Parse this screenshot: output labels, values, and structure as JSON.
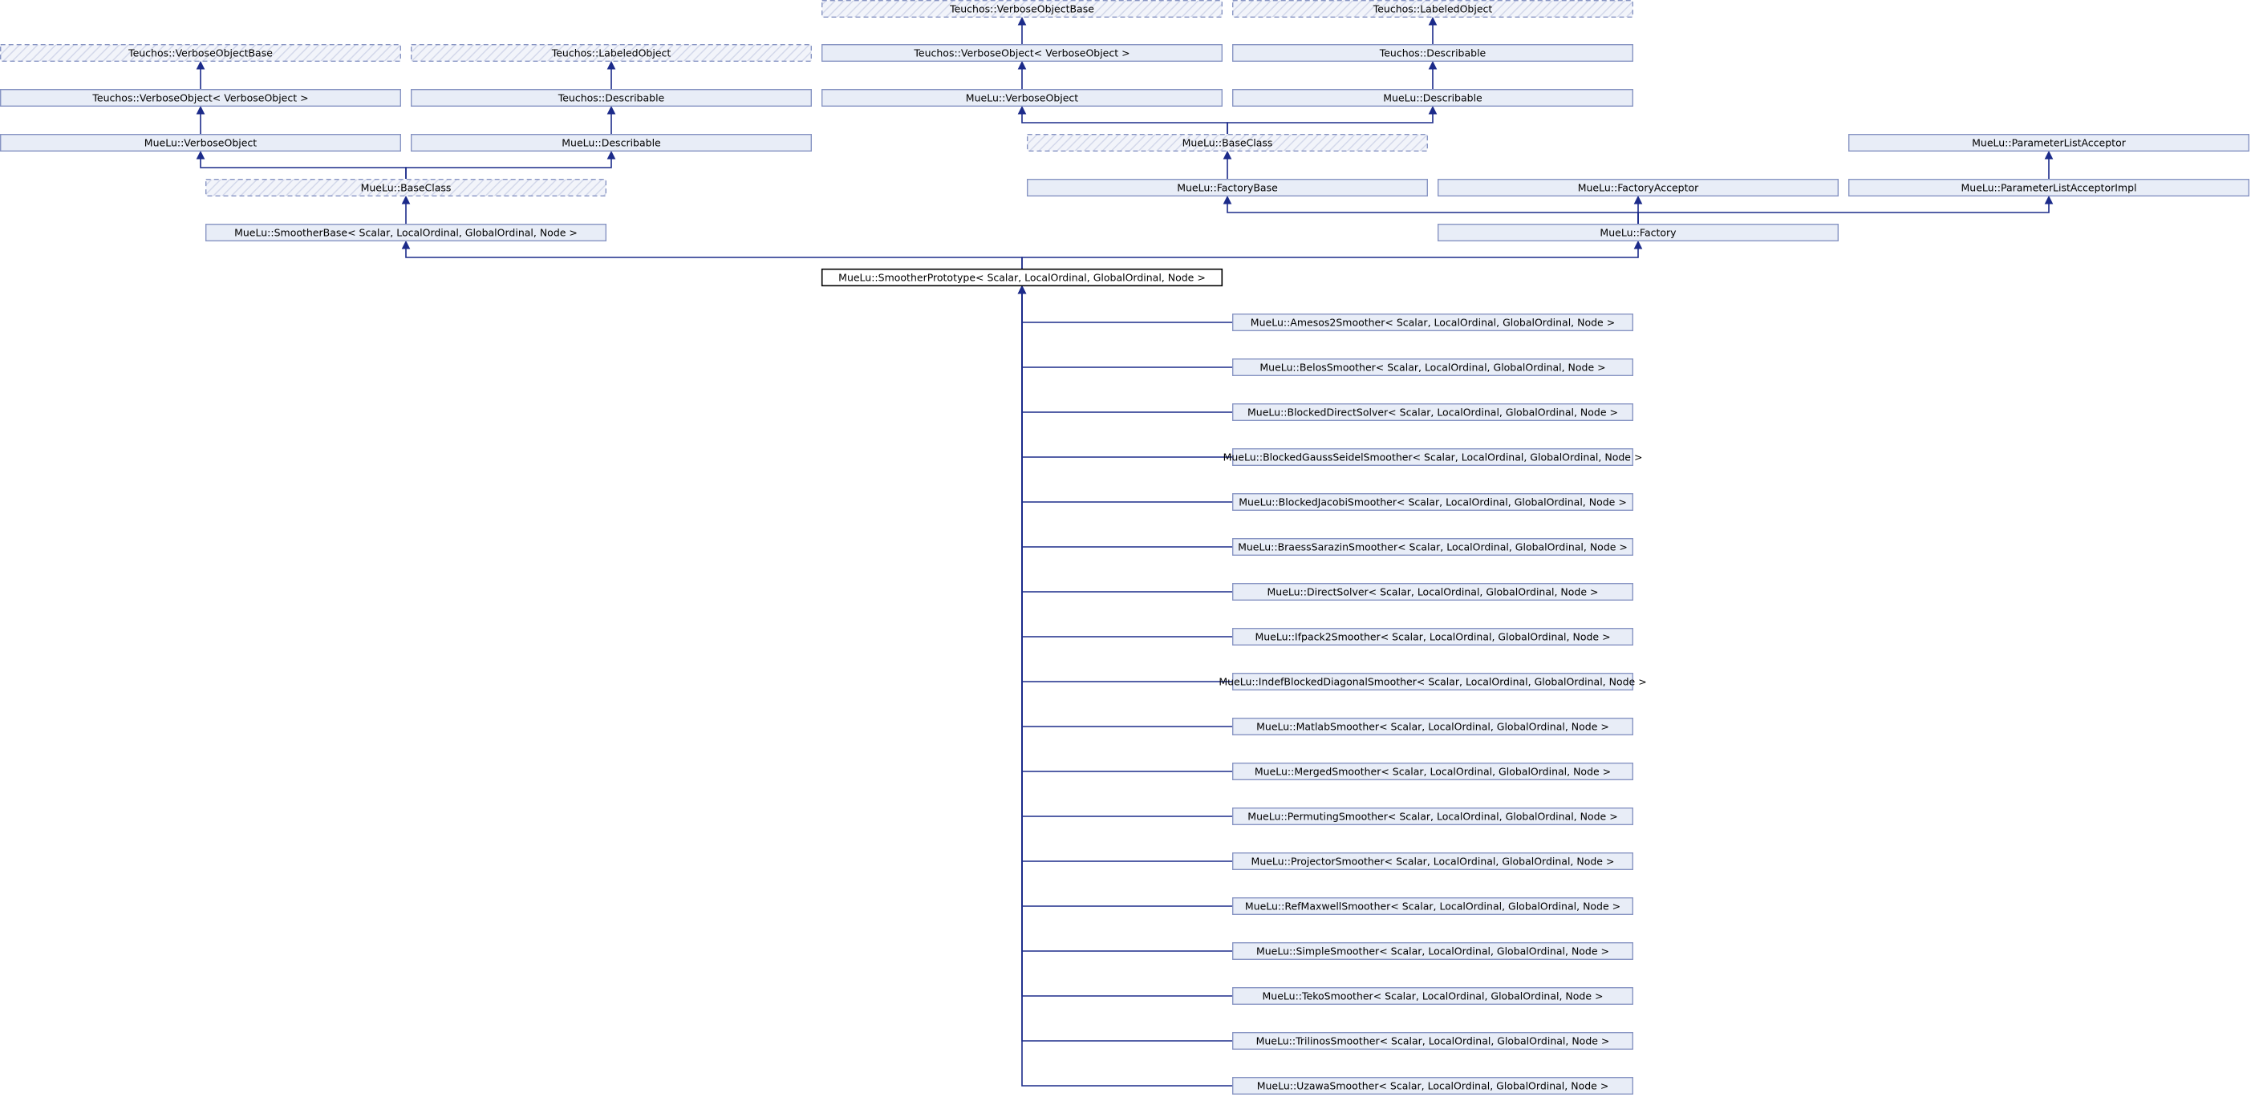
{
  "diagram": {
    "nodes": [
      {
        "id": "n1",
        "label": "Teuchos::VerboseObjectBase",
        "style": "dashed"
      },
      {
        "id": "n2",
        "label": "Teuchos::LabeledObject",
        "style": "dashed"
      },
      {
        "id": "n3",
        "label": "Teuchos::VerboseObject< VerboseObject >",
        "style": "solid"
      },
      {
        "id": "n4",
        "label": "Teuchos::Describable",
        "style": "solid"
      },
      {
        "id": "n5",
        "label": "MueLu::VerboseObject",
        "style": "solid"
      },
      {
        "id": "n6",
        "label": "MueLu::Describable",
        "style": "solid"
      },
      {
        "id": "n7",
        "label": "MueLu::BaseClass",
        "style": "dashed"
      },
      {
        "id": "n8",
        "label": "MueLu::SmootherBase< Scalar, LocalOrdinal, GlobalOrdinal, Node >",
        "style": "solid"
      },
      {
        "id": "n9",
        "label": "Teuchos::VerboseObjectBase",
        "style": "dashed"
      },
      {
        "id": "n10",
        "label": "Teuchos::LabeledObject",
        "style": "dashed"
      },
      {
        "id": "n11",
        "label": "Teuchos::VerboseObject< VerboseObject >",
        "style": "solid"
      },
      {
        "id": "n12",
        "label": "Teuchos::Describable",
        "style": "solid"
      },
      {
        "id": "n13",
        "label": "MueLu::VerboseObject",
        "style": "solid"
      },
      {
        "id": "n14",
        "label": "MueLu::Describable",
        "style": "solid"
      },
      {
        "id": "n15",
        "label": "MueLu::BaseClass",
        "style": "dashed"
      },
      {
        "id": "n16",
        "label": "MueLu::FactoryBase",
        "style": "solid"
      },
      {
        "id": "n17",
        "label": "MueLu::FactoryAcceptor",
        "style": "solid"
      },
      {
        "id": "n18",
        "label": "MueLu::ParameterListAcceptor",
        "style": "solid"
      },
      {
        "id": "n19",
        "label": "MueLu::ParameterListAcceptorImpl",
        "style": "solid"
      },
      {
        "id": "n20",
        "label": "MueLu::Factory",
        "style": "solid"
      },
      {
        "id": "n21",
        "label": "MueLu::SmootherPrototype< Scalar, LocalOrdinal, GlobalOrdinal, Node >",
        "style": "focus"
      },
      {
        "id": "c1",
        "label": "MueLu::Amesos2Smoother< Scalar, LocalOrdinal, GlobalOrdinal, Node >",
        "style": "solid"
      },
      {
        "id": "c2",
        "label": "MueLu::BelosSmoother< Scalar, LocalOrdinal, GlobalOrdinal, Node >",
        "style": "solid"
      },
      {
        "id": "c3",
        "label": "MueLu::BlockedDirectSolver< Scalar, LocalOrdinal, GlobalOrdinal, Node >",
        "style": "solid"
      },
      {
        "id": "c4",
        "label": "MueLu::BlockedGaussSeidelSmoother< Scalar, LocalOrdinal, GlobalOrdinal, Node >",
        "style": "solid"
      },
      {
        "id": "c5",
        "label": "MueLu::BlockedJacobiSmoother< Scalar, LocalOrdinal, GlobalOrdinal, Node >",
        "style": "solid"
      },
      {
        "id": "c6",
        "label": "MueLu::BraessSarazinSmoother< Scalar, LocalOrdinal, GlobalOrdinal, Node >",
        "style": "solid"
      },
      {
        "id": "c7",
        "label": "MueLu::DirectSolver< Scalar, LocalOrdinal, GlobalOrdinal, Node >",
        "style": "solid"
      },
      {
        "id": "c8",
        "label": "MueLu::Ifpack2Smoother< Scalar, LocalOrdinal, GlobalOrdinal, Node >",
        "style": "solid"
      },
      {
        "id": "c9",
        "label": "MueLu::IndefBlockedDiagonalSmoother< Scalar, LocalOrdinal, GlobalOrdinal, Node >",
        "style": "solid"
      },
      {
        "id": "c10",
        "label": "MueLu::MatlabSmoother< Scalar, LocalOrdinal, GlobalOrdinal, Node >",
        "style": "solid"
      },
      {
        "id": "c11",
        "label": "MueLu::MergedSmoother< Scalar, LocalOrdinal, GlobalOrdinal, Node >",
        "style": "solid"
      },
      {
        "id": "c12",
        "label": "MueLu::PermutingSmoother< Scalar, LocalOrdinal, GlobalOrdinal, Node >",
        "style": "solid"
      },
      {
        "id": "c13",
        "label": "MueLu::ProjectorSmoother< Scalar, LocalOrdinal, GlobalOrdinal, Node >",
        "style": "solid"
      },
      {
        "id": "c14",
        "label": "MueLu::RefMaxwellSmoother< Scalar, LocalOrdinal, GlobalOrdinal, Node >",
        "style": "solid"
      },
      {
        "id": "c15",
        "label": "MueLu::SimpleSmoother< Scalar, LocalOrdinal, GlobalOrdinal, Node >",
        "style": "solid"
      },
      {
        "id": "c16",
        "label": "MueLu::TekoSmoother< Scalar, LocalOrdinal, GlobalOrdinal, Node >",
        "style": "solid"
      },
      {
        "id": "c17",
        "label": "MueLu::TrilinosSmoother< Scalar, LocalOrdinal, GlobalOrdinal, Node >",
        "style": "solid"
      },
      {
        "id": "c18",
        "label": "MueLu::UzawaSmoother< Scalar, LocalOrdinal, GlobalOrdinal, Node >",
        "style": "solid"
      }
    ],
    "edges": [
      {
        "from": "n3",
        "to": "n1"
      },
      {
        "from": "n4",
        "to": "n2"
      },
      {
        "from": "n5",
        "to": "n3"
      },
      {
        "from": "n6",
        "to": "n4"
      },
      {
        "from": "n7",
        "to": "n5"
      },
      {
        "from": "n7",
        "to": "n6"
      },
      {
        "from": "n8",
        "to": "n7"
      },
      {
        "from": "n11",
        "to": "n9"
      },
      {
        "from": "n12",
        "to": "n10"
      },
      {
        "from": "n13",
        "to": "n11"
      },
      {
        "from": "n14",
        "to": "n12"
      },
      {
        "from": "n15",
        "to": "n13"
      },
      {
        "from": "n15",
        "to": "n14"
      },
      {
        "from": "n16",
        "to": "n15"
      },
      {
        "from": "n19",
        "to": "n18"
      },
      {
        "from": "n20",
        "to": "n16"
      },
      {
        "from": "n20",
        "to": "n17"
      },
      {
        "from": "n20",
        "to": "n19"
      },
      {
        "from": "n21",
        "to": "n8"
      },
      {
        "from": "n21",
        "to": "n20"
      },
      {
        "from": "c1",
        "to": "n21"
      },
      {
        "from": "c2",
        "to": "n21"
      },
      {
        "from": "c3",
        "to": "n21"
      },
      {
        "from": "c4",
        "to": "n21"
      },
      {
        "from": "c5",
        "to": "n21"
      },
      {
        "from": "c6",
        "to": "n21"
      },
      {
        "from": "c7",
        "to": "n21"
      },
      {
        "from": "c8",
        "to": "n21"
      },
      {
        "from": "c9",
        "to": "n21"
      },
      {
        "from": "c10",
        "to": "n21"
      },
      {
        "from": "c11",
        "to": "n21"
      },
      {
        "from": "c12",
        "to": "n21"
      },
      {
        "from": "c13",
        "to": "n21"
      },
      {
        "from": "c14",
        "to": "n21"
      },
      {
        "from": "c15",
        "to": "n21"
      },
      {
        "from": "c16",
        "to": "n21"
      },
      {
        "from": "c17",
        "to": "n21"
      },
      {
        "from": "c18",
        "to": "n21"
      }
    ]
  }
}
